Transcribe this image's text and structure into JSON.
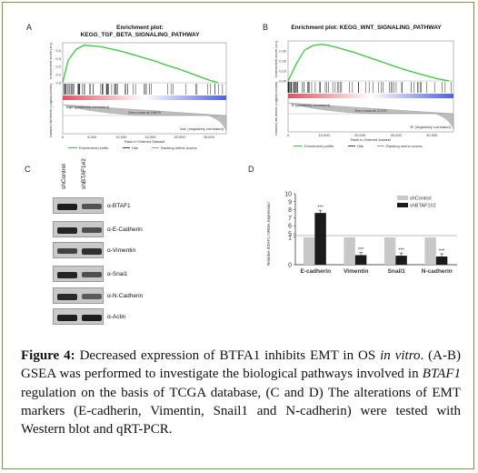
{
  "panels": {
    "a": {
      "letter": "A",
      "title": "Enrichment plot:",
      "subtitle": "KEGG_TGF_BETA_SIGNALING_PATHWAY",
      "ylabel_top": "Enrichment score (ES)",
      "ylabel_bottom": "Ranked list metric (Signal2Noise)",
      "high_label": "'high' (positively correlated)",
      "low_label": "'low' (negatively correlated)",
      "zero_cross": "Zero cross at 19679",
      "xlabel": "Rank in Ordered Dataset",
      "legend": [
        "Enrichment profile",
        "Hits",
        "Ranking metric scores"
      ]
    },
    "b": {
      "letter": "B",
      "title": "Enrichment plot: KEGG_WNT_SIGNALING_PATHWAY",
      "ylabel_top": "Enrichment score (ES)",
      "ylabel_bottom": "Ranked list metric (Signal2Noise)",
      "high_label": "'A' (positively correlated)",
      "low_label": "'B' (negatively correlated)",
      "zero_cross": "Zero cross at 27370",
      "xlabel": "Rank in Ordered Dataset",
      "legend": [
        "Enrichment profile",
        "Hits",
        "Ranking metric scores"
      ]
    },
    "c": {
      "letter": "C",
      "lanes": [
        "shControl",
        "shBTAF1#2"
      ],
      "markers": [
        "α-BTAF1",
        "α-E-Cadherin",
        "α-Vimentin",
        "α-Snai1",
        "α-N-Cadherin",
        "α-Actin"
      ]
    },
    "d": {
      "letter": "D"
    }
  },
  "chart_data": [
    {
      "type": "line",
      "panel": "A",
      "series": [
        {
          "name": "Enrichment profile",
          "x": [
            0,
            1000,
            2500,
            4000,
            5500,
            7000,
            9000,
            11000,
            13000,
            15000,
            17000,
            19000,
            21000,
            23000,
            25000,
            27000,
            28500
          ],
          "y": [
            0,
            0.28,
            0.42,
            0.47,
            0.46,
            0.45,
            0.42,
            0.39,
            0.35,
            0.31,
            0.27,
            0.22,
            0.18,
            0.13,
            0.08,
            0.03,
            0.0
          ]
        }
      ],
      "xlim": [
        0,
        30000
      ],
      "ylim": [
        0,
        0.5
      ],
      "x_ticks": [
        "0",
        "5,000",
        "10,000",
        "15,000",
        "20,000",
        "25,000"
      ],
      "y_ticks": [
        "0.0",
        "0.1",
        "0.2",
        "0.3",
        "0.4"
      ]
    },
    {
      "type": "line",
      "panel": "B",
      "series": [
        {
          "name": "Enrichment profile",
          "x": [
            0,
            2000,
            4000,
            6000,
            8000,
            10000,
            13000,
            16000,
            20000,
            24000,
            28000,
            32000,
            36000,
            39000
          ],
          "y": [
            0,
            0.15,
            0.27,
            0.31,
            0.32,
            0.31,
            0.28,
            0.25,
            0.2,
            0.15,
            0.1,
            0.06,
            0.02,
            0.0
          ]
        }
      ],
      "xlim": [
        0,
        40000
      ],
      "ylim": [
        0,
        0.35
      ],
      "x_ticks": [
        "0",
        "10,000",
        "20,000",
        "30,000",
        "40,000"
      ],
      "y_ticks": [
        "0.00",
        "0.10",
        "0.20",
        "0.30"
      ]
    },
    {
      "type": "bar",
      "panel": "D",
      "categories": [
        "E-cadherin",
        "Vimentin",
        "Snail1",
        "N-cadherin"
      ],
      "series": [
        {
          "name": "shControl",
          "values": [
            1,
            1,
            1,
            1
          ]
        },
        {
          "name": "shBTAF1#2",
          "values": [
            7.6,
            0.35,
            0.33,
            0.3
          ]
        }
      ],
      "significance": [
        "***",
        "***",
        "***",
        "***"
      ],
      "ylabel": "Relative BTAF1 mRNA expression",
      "y_ticks": [
        "0",
        "1",
        "5",
        "6",
        "7",
        "8",
        "9",
        "10"
      ],
      "ylim": [
        0,
        10
      ],
      "colors": {
        "shControl": "#c8c8c8",
        "shBTAF1#2": "#1a1a1a"
      }
    }
  ],
  "caption": {
    "figure_label": "Figure 4:",
    "text_1": " Decreased expression of BTFA1 inhibits EMT in OS ",
    "text_italic_1": "in vitro",
    "text_2": ". (A-B) GSEA was performed to investigate the biological pathways involved in ",
    "text_italic_2": "BTAF1",
    "text_3": " regulation on the basis of TCGA database, (C and D) The alterations of EMT markers (E-cadherin, Vimentin, Snail1 and N-cadherin) were tested with Western blot and qRT-PCR."
  },
  "colors": {
    "border": "#7a9a36",
    "es_line": "#33cc33",
    "high": "#e05060",
    "low": "#5060e0"
  }
}
